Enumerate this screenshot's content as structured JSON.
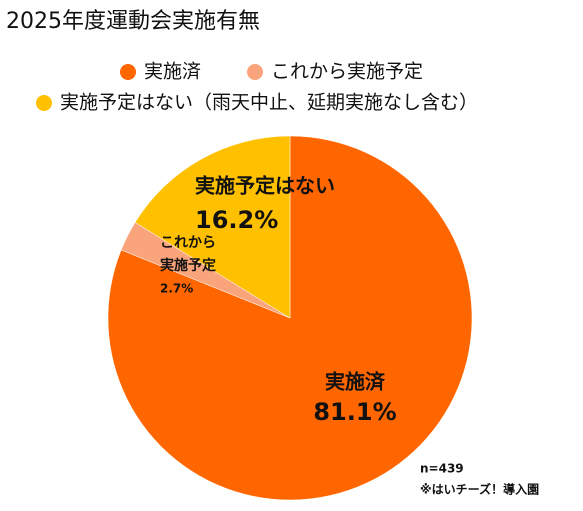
{
  "chart_data": {
    "type": "pie",
    "title": "2025年度運動会実施有無",
    "categories": [
      "実施済",
      "これから実施予定",
      "実施予定はない（雨天中止、延期実施なし含む）"
    ],
    "values": [
      81.1,
      2.7,
      16.2
    ],
    "value_labels": [
      "81.1%",
      "2.7%",
      "16.2%"
    ],
    "slice_labels": [
      [
        "実施済"
      ],
      [
        "これから",
        "実施予定"
      ],
      [
        "実施予定はない"
      ]
    ],
    "colors": [
      "#ff6600",
      "#f9a47a",
      "#ffc000"
    ],
    "notes": [
      "n=439",
      "※はいチーズ！導入園"
    ]
  }
}
